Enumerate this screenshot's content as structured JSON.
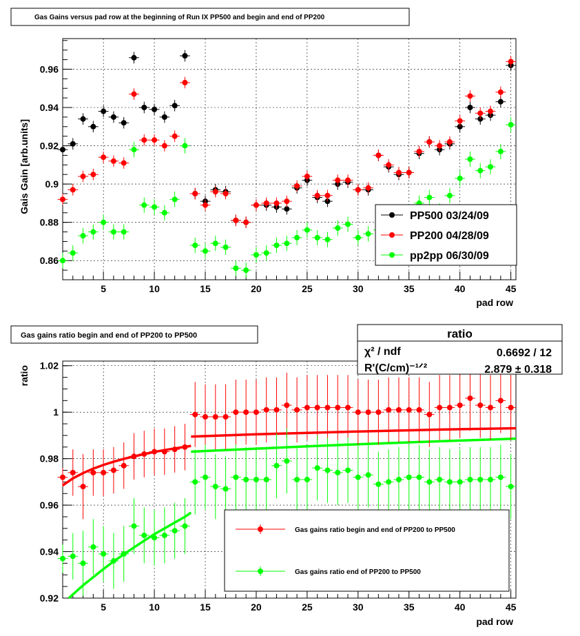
{
  "chart_data": [
    {
      "type": "scatter",
      "title": "Gas Gains versus pad row at the beginning of Run IX PP500 and begin and end of PP200",
      "xlabel": "pad row",
      "ylabel": "Gais Gain [arb.units]",
      "xlim": [
        1,
        45.5
      ],
      "ylim": [
        0.85,
        0.976
      ],
      "grid": true,
      "legend_position": "bottom-right",
      "x_ticks": [
        5,
        10,
        15,
        20,
        25,
        30,
        35,
        40,
        45
      ],
      "x_tick_labels": [
        "5",
        "10",
        "15",
        "20",
        "25",
        "30",
        "35",
        "40",
        "45"
      ],
      "y_ticks": [
        0.86,
        0.88,
        0.9,
        0.92,
        0.94,
        0.96
      ],
      "y_tick_labels": [
        "0.86",
        "0.88",
        "0.9",
        "0.92",
        "0.94",
        "0.96"
      ],
      "series": [
        {
          "name": "PP500 03/24/09",
          "color": "#000000",
          "x": [
            1,
            2,
            3,
            4,
            5,
            6,
            7,
            8,
            9,
            10,
            11,
            12,
            13,
            14,
            15,
            16,
            17,
            18,
            19,
            20,
            21,
            22,
            23,
            24,
            25,
            26,
            27,
            28,
            29,
            30,
            31,
            32,
            33,
            34,
            35,
            36,
            37,
            38,
            39,
            40,
            41,
            42,
            43,
            44,
            45
          ],
          "y": [
            0.918,
            0.921,
            0.934,
            0.93,
            0.938,
            0.935,
            0.932,
            0.966,
            0.94,
            0.939,
            0.935,
            0.941,
            0.967,
            0.895,
            0.891,
            0.897,
            0.896,
            0.881,
            0.88,
            0.889,
            0.889,
            0.888,
            0.887,
            0.898,
            0.902,
            0.893,
            0.891,
            0.9,
            0.901,
            0.897,
            0.897,
            0.915,
            0.909,
            0.905,
            0.906,
            0.916,
            0.922,
            0.918,
            0.921,
            0.93,
            0.94,
            0.934,
            0.936,
            0.943,
            0.962
          ],
          "err": [
            0.003,
            0.003,
            0.003,
            0.003,
            0.003,
            0.003,
            0.003,
            0.003,
            0.003,
            0.003,
            0.003,
            0.003,
            0.003,
            0.003,
            0.003,
            0.003,
            0.003,
            0.003,
            0.003,
            0.003,
            0.003,
            0.003,
            0.003,
            0.003,
            0.003,
            0.003,
            0.003,
            0.003,
            0.003,
            0.003,
            0.003,
            0.003,
            0.003,
            0.003,
            0.003,
            0.003,
            0.003,
            0.003,
            0.003,
            0.003,
            0.003,
            0.003,
            0.003,
            0.003,
            0.003
          ]
        },
        {
          "name": "PP200 04/28/09",
          "color": "#ff0000",
          "x": [
            1,
            2,
            3,
            4,
            5,
            6,
            7,
            8,
            9,
            10,
            11,
            12,
            13,
            14,
            15,
            16,
            17,
            18,
            19,
            20,
            21,
            22,
            23,
            24,
            25,
            26,
            27,
            28,
            29,
            30,
            31,
            32,
            33,
            34,
            35,
            36,
            37,
            38,
            39,
            40,
            41,
            42,
            43,
            44,
            45
          ],
          "y": [
            0.892,
            0.897,
            0.904,
            0.905,
            0.914,
            0.912,
            0.911,
            0.947,
            0.923,
            0.923,
            0.92,
            0.925,
            0.953,
            0.895,
            0.889,
            0.896,
            0.895,
            0.881,
            0.88,
            0.889,
            0.89,
            0.89,
            0.891,
            0.899,
            0.904,
            0.894,
            0.894,
            0.902,
            0.902,
            0.897,
            0.898,
            0.915,
            0.91,
            0.906,
            0.906,
            0.917,
            0.922,
            0.92,
            0.922,
            0.933,
            0.946,
            0.937,
            0.938,
            0.948,
            0.964
          ],
          "err": [
            0.003,
            0.003,
            0.003,
            0.003,
            0.003,
            0.003,
            0.003,
            0.003,
            0.003,
            0.003,
            0.003,
            0.003,
            0.003,
            0.003,
            0.003,
            0.003,
            0.003,
            0.003,
            0.003,
            0.003,
            0.003,
            0.003,
            0.003,
            0.003,
            0.003,
            0.003,
            0.003,
            0.003,
            0.003,
            0.003,
            0.003,
            0.003,
            0.003,
            0.003,
            0.003,
            0.003,
            0.003,
            0.003,
            0.003,
            0.003,
            0.003,
            0.003,
            0.003,
            0.003,
            0.003
          ]
        },
        {
          "name": "pp2pp 06/30/09",
          "color": "#00ff00",
          "x": [
            1,
            2,
            3,
            4,
            5,
            6,
            7,
            8,
            9,
            10,
            11,
            12,
            13,
            14,
            15,
            16,
            17,
            18,
            19,
            20,
            21,
            22,
            23,
            24,
            25,
            26,
            27,
            28,
            29,
            30,
            31,
            32,
            33,
            34,
            35,
            36,
            37,
            38,
            39,
            40,
            41,
            42,
            43,
            44,
            45
          ],
          "y": [
            0.86,
            0.864,
            0.873,
            0.875,
            0.88,
            0.875,
            0.875,
            0.918,
            0.889,
            0.888,
            0.885,
            0.892,
            0.92,
            0.868,
            0.865,
            0.869,
            0.867,
            0.856,
            0.855,
            0.863,
            0.864,
            0.868,
            0.869,
            0.872,
            0.876,
            0.872,
            0.871,
            0.877,
            0.879,
            0.872,
            0.874,
            0.876,
            0.878,
            0.88,
            0.882,
            0.89,
            0.893,
            0.886,
            0.894,
            0.903,
            0.913,
            0.907,
            0.909,
            0.917,
            0.931
          ],
          "err": [
            0.004,
            0.004,
            0.004,
            0.004,
            0.004,
            0.004,
            0.004,
            0.004,
            0.004,
            0.004,
            0.004,
            0.004,
            0.004,
            0.004,
            0.004,
            0.004,
            0.004,
            0.004,
            0.004,
            0.004,
            0.004,
            0.004,
            0.004,
            0.004,
            0.004,
            0.004,
            0.004,
            0.004,
            0.004,
            0.004,
            0.004,
            0.004,
            0.004,
            0.004,
            0.004,
            0.004,
            0.004,
            0.004,
            0.004,
            0.004,
            0.004,
            0.004,
            0.004,
            0.004,
            0.004
          ]
        }
      ]
    },
    {
      "type": "scatter",
      "title": "Gas gains ratio begin and end  of PP200 to PP500",
      "xlabel": "pad row",
      "ylabel": "ratio",
      "xlim": [
        1,
        45.5
      ],
      "ylim": [
        0.92,
        1.022
      ],
      "grid": true,
      "legend_position": "bottom-right",
      "x_ticks": [
        5,
        10,
        15,
        20,
        25,
        30,
        35,
        40,
        45
      ],
      "x_tick_labels": [
        "5",
        "10",
        "15",
        "20",
        "25",
        "30",
        "35",
        "40",
        "45"
      ],
      "y_ticks": [
        0.92,
        0.94,
        0.96,
        0.98,
        1.0,
        1.02
      ],
      "y_tick_labels": [
        "0.92",
        "0.94",
        "0.96",
        "0.98",
        "1",
        "1.02"
      ],
      "stats": {
        "title": "ratio",
        "rows": [
          {
            "label": "χ² / ndf",
            "value": "0.6692 / 12"
          },
          {
            "label": "R'(C/cm)⁻¹ᐟ²",
            "value": "2.879 ± 0.318"
          }
        ]
      },
      "series": [
        {
          "name": "Gas gains ratio begin and end  of PP200 to PP500",
          "color": "#ff0000",
          "x": [
            1,
            2,
            3,
            4,
            5,
            6,
            7,
            8,
            9,
            10,
            11,
            12,
            13,
            14,
            15,
            16,
            17,
            18,
            19,
            20,
            21,
            22,
            23,
            24,
            25,
            26,
            27,
            28,
            29,
            30,
            31,
            32,
            33,
            34,
            35,
            36,
            37,
            38,
            39,
            40,
            41,
            42,
            43,
            44,
            45
          ],
          "y": [
            0.972,
            0.974,
            0.968,
            0.974,
            0.974,
            0.975,
            0.977,
            0.981,
            0.982,
            0.983,
            0.983,
            0.984,
            0.985,
            0.999,
            0.998,
            0.998,
            0.998,
            1.0,
            1.0,
            1.0,
            1.001,
            1.001,
            1.003,
            1.001,
            1.002,
            1.002,
            1.002,
            1.002,
            1.002,
            1.0,
            1.0,
            1.0,
            1.001,
            1.001,
            1.001,
            1.001,
            0.999,
            1.002,
            1.002,
            1.003,
            1.006,
            1.003,
            1.002,
            1.005,
            1.002
          ],
          "err": [
            0.004,
            0.01,
            0.014,
            0.01,
            0.01,
            0.01,
            0.01,
            0.01,
            0.01,
            0.01,
            0.01,
            0.01,
            0.01,
            0.014,
            0.014,
            0.014,
            0.014,
            0.014,
            0.014,
            0.014,
            0.014,
            0.014,
            0.014,
            0.014,
            0.014,
            0.014,
            0.014,
            0.014,
            0.014,
            0.014,
            0.014,
            0.014,
            0.014,
            0.014,
            0.014,
            0.014,
            0.014,
            0.014,
            0.014,
            0.014,
            0.014,
            0.014,
            0.014,
            0.014,
            0.014
          ]
        },
        {
          "name": "Gas gains ratio end of PP200 to PP500",
          "color": "#00ff00",
          "x": [
            1,
            2,
            3,
            4,
            5,
            6,
            7,
            8,
            9,
            10,
            11,
            12,
            13,
            14,
            15,
            16,
            17,
            18,
            19,
            20,
            21,
            22,
            23,
            24,
            25,
            26,
            27,
            28,
            29,
            30,
            31,
            32,
            33,
            34,
            35,
            36,
            37,
            38,
            39,
            40,
            41,
            42,
            43,
            44,
            45
          ],
          "y": [
            0.937,
            0.938,
            0.935,
            0.942,
            0.939,
            0.936,
            0.939,
            0.951,
            0.947,
            0.946,
            0.947,
            0.949,
            0.951,
            0.97,
            0.972,
            0.968,
            0.967,
            0.972,
            0.971,
            0.971,
            0.971,
            0.977,
            0.979,
            0.971,
            0.971,
            0.976,
            0.975,
            0.974,
            0.975,
            0.972,
            0.973,
            0.969,
            0.97,
            0.971,
            0.972,
            0.972,
            0.97,
            0.971,
            0.97,
            0.97,
            0.971,
            0.971,
            0.971,
            0.972,
            0.968
          ],
          "err": [
            0.006,
            0.01,
            0.014,
            0.012,
            0.012,
            0.012,
            0.012,
            0.012,
            0.012,
            0.012,
            0.012,
            0.012,
            0.012,
            0.014,
            0.014,
            0.014,
            0.014,
            0.014,
            0.014,
            0.014,
            0.014,
            0.014,
            0.014,
            0.014,
            0.014,
            0.014,
            0.014,
            0.014,
            0.014,
            0.014,
            0.014,
            0.014,
            0.014,
            0.014,
            0.014,
            0.014,
            0.014,
            0.014,
            0.014,
            0.014,
            0.014,
            0.014,
            0.014,
            0.014,
            0.014
          ]
        }
      ],
      "fits": [
        {
          "color": "#ff0000",
          "segments": [
            {
              "x": [
                1,
                2,
                3,
                4,
                5,
                6,
                7,
                8,
                9,
                10,
                11,
                12,
                13,
                13.6
              ],
              "y": [
                0.9685,
                0.9715,
                0.9738,
                0.9757,
                0.9773,
                0.9787,
                0.9799,
                0.981,
                0.982,
                0.9829,
                0.9837,
                0.9844,
                0.9851,
                0.9855
              ]
            },
            {
              "x": [
                13.6,
                20,
                25,
                30,
                35,
                40,
                45.5
              ],
              "y": [
                0.9895,
                0.9905,
                0.9911,
                0.9917,
                0.9922,
                0.9927,
                0.9931
              ]
            }
          ]
        },
        {
          "color": "#00ff00",
          "segments": [
            {
              "x": [
                1.6,
                3,
                4,
                5,
                6,
                7,
                8,
                9,
                10,
                11,
                12,
                13,
                13.6
              ],
              "y": [
                0.92,
                0.9255,
                0.929,
                0.9325,
                0.9358,
                0.9388,
                0.9418,
                0.9447,
                0.9475,
                0.95,
                0.9525,
                0.955,
                0.9568
              ]
            },
            {
              "x": [
                13.6,
                20,
                25,
                30,
                35,
                40,
                45.5
              ],
              "y": [
                0.983,
                0.9843,
                0.9853,
                0.9862,
                0.987,
                0.9878,
                0.9886
              ]
            }
          ]
        }
      ]
    }
  ]
}
